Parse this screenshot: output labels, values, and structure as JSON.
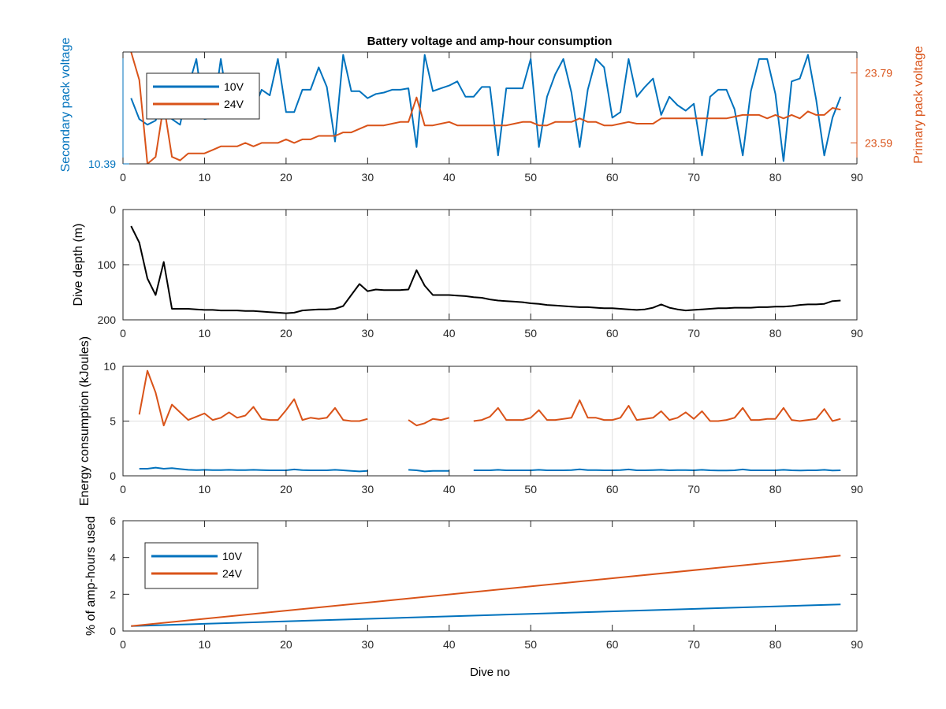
{
  "title": "Battery voltage and amp-hour consumption",
  "colors": {
    "blue": "#0072BD",
    "orange": "#D95319",
    "black": "#000000",
    "axis": "#262626",
    "grid": "#DFDFDF"
  },
  "chart_data": [
    {
      "type": "line",
      "title": "Battery voltage and amp-hour consumption",
      "xlabel": "",
      "ylabel": "Secondary pack voltage",
      "ylabel_right": "Primary pack voltage",
      "xlim": [
        0,
        90
      ],
      "xticks": [
        0,
        10,
        20,
        30,
        40,
        50,
        60,
        70,
        80,
        90
      ],
      "ylim_left": [
        10.39,
        10.47
      ],
      "yticks_left": [
        10.39
      ],
      "ytick_labels_left": [
        "10.39"
      ],
      "ylim_right": [
        23.53,
        23.85
      ],
      "yticks_right": [
        23.59,
        23.79
      ],
      "ytick_labels_right": [
        "23.59",
        "23.79"
      ],
      "grid": false,
      "legend": {
        "placement": "top-left",
        "entries": [
          "10V",
          "24V"
        ]
      },
      "series": [
        {
          "name": "10V",
          "axis": "left",
          "color": "#0072BD",
          "x": [
            1,
            2,
            3,
            4,
            5,
            6,
            7,
            8,
            9,
            10,
            11,
            12,
            13,
            14,
            15,
            16,
            17,
            18,
            19,
            20,
            21,
            22,
            23,
            24,
            25,
            26,
            27,
            28,
            29,
            30,
            31,
            32,
            33,
            34,
            35,
            36,
            37,
            38,
            39,
            40,
            41,
            42,
            43,
            44,
            45,
            46,
            47,
            48,
            49,
            50,
            51,
            52,
            53,
            54,
            55,
            56,
            57,
            58,
            59,
            60,
            61,
            62,
            63,
            64,
            65,
            66,
            67,
            68,
            69,
            70,
            71,
            72,
            73,
            74,
            75,
            76,
            77,
            78,
            79,
            80,
            81,
            82,
            83,
            84,
            85,
            86,
            87,
            88
          ],
          "y": [
            10.437,
            10.422,
            10.418,
            10.421,
            10.437,
            10.422,
            10.418,
            10.445,
            10.465,
            10.422,
            10.423,
            10.465,
            10.427,
            10.433,
            10.444,
            10.428,
            10.443,
            10.439,
            10.465,
            10.427,
            10.427,
            10.443,
            10.443,
            10.459,
            10.445,
            10.406,
            10.468,
            10.442,
            10.442,
            10.437,
            10.44,
            10.441,
            10.443,
            10.443,
            10.444,
            10.402,
            10.468,
            10.442,
            10.444,
            10.446,
            10.449,
            10.438,
            10.438,
            10.445,
            10.445,
            10.396,
            10.444,
            10.444,
            10.444,
            10.465,
            10.402,
            10.438,
            10.454,
            10.465,
            10.441,
            10.402,
            10.443,
            10.465,
            10.459,
            10.423,
            10.427,
            10.465,
            10.438,
            10.445,
            10.451,
            10.425,
            10.438,
            10.432,
            10.428,
            10.433,
            10.396,
            10.438,
            10.443,
            10.443,
            10.429,
            10.396,
            10.442,
            10.465,
            10.465,
            10.44,
            10.392,
            10.449,
            10.451,
            10.468,
            10.436,
            10.396,
            10.423,
            10.438
          ]
        },
        {
          "name": "24V",
          "axis": "right",
          "color": "#D95319",
          "x": [
            1,
            2,
            3,
            4,
            5,
            6,
            7,
            8,
            9,
            10,
            11,
            12,
            13,
            14,
            15,
            16,
            17,
            18,
            19,
            20,
            21,
            22,
            23,
            24,
            25,
            26,
            27,
            28,
            29,
            30,
            31,
            32,
            33,
            34,
            35,
            36,
            37,
            38,
            39,
            40,
            41,
            42,
            43,
            44,
            45,
            46,
            47,
            48,
            49,
            50,
            51,
            52,
            53,
            54,
            55,
            56,
            57,
            58,
            59,
            60,
            61,
            62,
            63,
            64,
            65,
            66,
            67,
            68,
            69,
            70,
            71,
            72,
            73,
            74,
            75,
            76,
            77,
            78,
            79,
            80,
            81,
            82,
            83,
            84,
            85,
            86,
            87,
            88
          ],
          "y": [
            23.85,
            23.77,
            23.53,
            23.55,
            23.7,
            23.55,
            23.54,
            23.56,
            23.56,
            23.56,
            23.57,
            23.58,
            23.58,
            23.58,
            23.59,
            23.58,
            23.59,
            23.59,
            23.59,
            23.6,
            23.59,
            23.6,
            23.6,
            23.61,
            23.61,
            23.61,
            23.62,
            23.62,
            23.63,
            23.64,
            23.64,
            23.64,
            23.645,
            23.65,
            23.65,
            23.72,
            23.64,
            23.64,
            23.645,
            23.65,
            23.64,
            23.64,
            23.64,
            23.64,
            23.64,
            23.64,
            23.64,
            23.645,
            23.65,
            23.65,
            23.64,
            23.64,
            23.65,
            23.65,
            23.65,
            23.66,
            23.65,
            23.65,
            23.64,
            23.64,
            23.645,
            23.65,
            23.645,
            23.645,
            23.645,
            23.66,
            23.66,
            23.66,
            23.66,
            23.66,
            23.66,
            23.66,
            23.66,
            23.66,
            23.665,
            23.67,
            23.67,
            23.67,
            23.66,
            23.67,
            23.66,
            23.67,
            23.66,
            23.68,
            23.67,
            23.67,
            23.69,
            23.685
          ]
        }
      ]
    },
    {
      "type": "line",
      "xlabel": "",
      "ylabel": "Dive depth (m)",
      "xlim": [
        0,
        90
      ],
      "xticks": [
        0,
        10,
        20,
        30,
        40,
        50,
        60,
        70,
        80,
        90
      ],
      "ylim": [
        0,
        200
      ],
      "y_reversed": true,
      "yticks": [
        0,
        100,
        200
      ],
      "grid": true,
      "series": [
        {
          "name": "",
          "color": "#000000",
          "x": [
            1,
            2,
            3,
            4,
            5,
            6,
            7,
            8,
            9,
            10,
            11,
            12,
            13,
            14,
            15,
            16,
            17,
            18,
            19,
            20,
            21,
            22,
            23,
            24,
            25,
            26,
            27,
            28,
            29,
            30,
            31,
            32,
            33,
            34,
            35,
            36,
            37,
            38,
            39,
            40,
            41,
            42,
            43,
            44,
            45,
            46,
            47,
            48,
            49,
            50,
            51,
            52,
            53,
            54,
            55,
            56,
            57,
            58,
            59,
            60,
            61,
            62,
            63,
            64,
            65,
            66,
            67,
            68,
            69,
            70,
            71,
            72,
            73,
            74,
            75,
            76,
            77,
            78,
            79,
            80,
            81,
            82,
            83,
            84,
            85,
            86,
            87,
            88
          ],
          "y": [
            30,
            60,
            125,
            155,
            95,
            180,
            180,
            180,
            181,
            182,
            182,
            183,
            183,
            183,
            184,
            184,
            185,
            186,
            187,
            188,
            187,
            183,
            182,
            181,
            181,
            180,
            175,
            155,
            135,
            148,
            145,
            146,
            146,
            146,
            145,
            110,
            138,
            155,
            155,
            155,
            156,
            157,
            159,
            160,
            163,
            165,
            166,
            167,
            168,
            170,
            171,
            173,
            174,
            175,
            176,
            177,
            177,
            178,
            179,
            179,
            180,
            181,
            182,
            181,
            178,
            172,
            178,
            181,
            183,
            182,
            181,
            180,
            179,
            179,
            178,
            178,
            178,
            177,
            177,
            176,
            176,
            175,
            173,
            172,
            172,
            171,
            166,
            165
          ]
        }
      ]
    },
    {
      "type": "line",
      "xlabel": "",
      "ylabel": "Energy consumption (kJoules)",
      "xlim": [
        0,
        90
      ],
      "xticks": [
        0,
        10,
        20,
        30,
        40,
        50,
        60,
        70,
        80,
        90
      ],
      "ylim": [
        0,
        10
      ],
      "yticks": [
        0,
        5,
        10
      ],
      "grid": true,
      "series": [
        {
          "name": "24V",
          "color": "#D95319",
          "x": [
            2,
            3,
            4,
            5,
            6,
            7,
            8,
            9,
            10,
            11,
            12,
            13,
            14,
            15,
            16,
            17,
            18,
            19,
            20,
            21,
            22,
            23,
            24,
            25,
            26,
            27,
            28,
            29,
            30,
            null,
            35,
            36,
            37,
            38,
            39,
            40,
            null,
            43,
            44,
            45,
            46,
            47,
            48,
            49,
            50,
            51,
            52,
            53,
            54,
            55,
            56,
            57,
            58,
            59,
            60,
            61,
            62,
            63,
            64,
            65,
            66,
            67,
            68,
            69,
            70,
            71,
            72,
            73,
            74,
            75,
            76,
            77,
            78,
            79,
            80,
            81,
            82,
            83,
            84,
            85,
            86,
            87,
            88
          ],
          "y": [
            5.6,
            9.6,
            7.6,
            4.6,
            6.5,
            5.8,
            5.1,
            5.4,
            5.7,
            5.1,
            5.3,
            5.8,
            5.3,
            5.5,
            6.3,
            5.2,
            5.1,
            5.1,
            6.0,
            7.0,
            5.1,
            5.3,
            5.2,
            5.3,
            6.2,
            5.1,
            5.0,
            5.0,
            5.2,
            null,
            5.1,
            4.6,
            4.8,
            5.2,
            5.1,
            5.3,
            null,
            5.0,
            5.1,
            5.4,
            6.2,
            5.1,
            5.1,
            5.1,
            5.3,
            6.0,
            5.1,
            5.1,
            5.2,
            5.3,
            6.9,
            5.3,
            5.3,
            5.1,
            5.1,
            5.3,
            6.4,
            5.1,
            5.2,
            5.3,
            5.9,
            5.1,
            5.3,
            5.8,
            5.2,
            5.9,
            5.0,
            5.0,
            5.1,
            5.3,
            6.2,
            5.1,
            5.1,
            5.2,
            5.2,
            6.2,
            5.1,
            5.0,
            5.1,
            5.2,
            6.1,
            5.0,
            5.2
          ]
        },
        {
          "name": "10V",
          "color": "#0072BD",
          "x": [
            2,
            3,
            4,
            5,
            6,
            7,
            8,
            9,
            10,
            11,
            12,
            13,
            14,
            15,
            16,
            17,
            18,
            19,
            20,
            21,
            22,
            23,
            24,
            25,
            26,
            27,
            28,
            29,
            30,
            null,
            35,
            36,
            37,
            38,
            39,
            40,
            null,
            43,
            44,
            45,
            46,
            47,
            48,
            49,
            50,
            51,
            52,
            53,
            54,
            55,
            56,
            57,
            58,
            59,
            60,
            61,
            62,
            63,
            64,
            65,
            66,
            67,
            68,
            69,
            70,
            71,
            72,
            73,
            74,
            75,
            76,
            77,
            78,
            79,
            80,
            81,
            82,
            83,
            84,
            85,
            86,
            87,
            88
          ],
          "y": [
            0.65,
            0.65,
            0.75,
            0.65,
            0.7,
            0.62,
            0.55,
            0.52,
            0.55,
            0.52,
            0.52,
            0.55,
            0.52,
            0.52,
            0.55,
            0.52,
            0.5,
            0.5,
            0.5,
            0.58,
            0.52,
            0.5,
            0.5,
            0.5,
            0.55,
            0.5,
            0.45,
            0.4,
            0.45,
            null,
            0.55,
            0.5,
            0.4,
            0.45,
            0.45,
            0.45,
            null,
            0.5,
            0.5,
            0.5,
            0.55,
            0.5,
            0.5,
            0.5,
            0.5,
            0.55,
            0.5,
            0.5,
            0.5,
            0.52,
            0.6,
            0.52,
            0.52,
            0.5,
            0.5,
            0.52,
            0.58,
            0.5,
            0.5,
            0.52,
            0.55,
            0.5,
            0.52,
            0.52,
            0.5,
            0.55,
            0.5,
            0.48,
            0.48,
            0.5,
            0.58,
            0.5,
            0.5,
            0.5,
            0.5,
            0.55,
            0.5,
            0.48,
            0.5,
            0.5,
            0.55,
            0.48,
            0.5
          ]
        }
      ]
    },
    {
      "type": "line",
      "xlabel": "Dive no",
      "ylabel": "% of amp-hours used",
      "xlim": [
        0,
        90
      ],
      "xticks": [
        0,
        10,
        20,
        30,
        40,
        50,
        60,
        70,
        80,
        90
      ],
      "ylim": [
        0,
        6
      ],
      "yticks": [
        0,
        2,
        4,
        6
      ],
      "grid": false,
      "legend": {
        "placement": "top-left",
        "entries": [
          "10V",
          "24V"
        ]
      },
      "series": [
        {
          "name": "10V",
          "color": "#0072BD",
          "x": [
            1,
            88
          ],
          "y": [
            0.27,
            1.45
          ]
        },
        {
          "name": "24V",
          "color": "#D95319",
          "x": [
            1,
            88
          ],
          "y": [
            0.27,
            4.1
          ]
        }
      ]
    }
  ]
}
